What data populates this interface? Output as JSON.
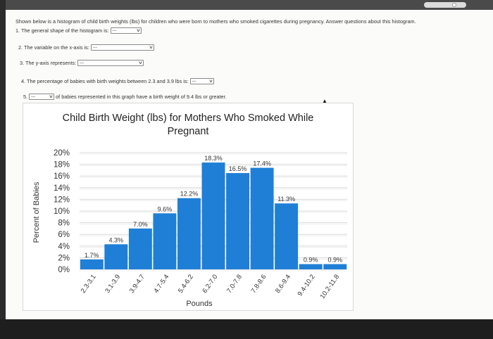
{
  "intro": "Shown below is a histogram of child birth weights (lbs) for children who were born to mothers who smoked cigarettes during pregnancy. Answer questions about this histogram.",
  "questions": [
    {
      "label": "1. The general shape of the histogram is:",
      "selected": "---"
    },
    {
      "label": "2. The variable on the x-axis is:",
      "selected": "---"
    },
    {
      "label": "3. The y-axis represents:",
      "selected": "---"
    },
    {
      "label": "4. The percentage of babies with birth weights between 2.3 and 3.9 lbs is:",
      "selected": "---"
    },
    {
      "label": "5.",
      "selected": "---",
      "suffix": "of babies represented in this graph have a birth weight of 9.4 lbs or greater."
    }
  ],
  "chart_data": {
    "type": "bar",
    "title_line1": "Child Birth Weight (lbs) for Mothers Who Smoked While",
    "title_line2": "Pregnant",
    "xlabel": "Pounds",
    "ylabel": "Percent of Babies",
    "categories": [
      "2.3-3.1",
      "3.1-3.9",
      "3.9-4.7",
      "4.7-5.4",
      "5.4-6.2",
      "6.2-7.0",
      "7.0-7.8",
      "7.8-8.6",
      "8.6-9.4",
      "9.4-10.2",
      "10.2-11.8"
    ],
    "values": [
      1.7,
      4.3,
      7.0,
      9.6,
      12.2,
      18.3,
      16.5,
      17.4,
      11.3,
      0.9,
      0.9
    ],
    "value_labels": [
      "1.7%",
      "4.3%",
      "7.0%",
      "9.6%",
      "12.2%",
      "18.3%",
      "16.5%",
      "17.4%",
      "11.3%",
      "0.9%",
      "0.9%"
    ],
    "yticks": [
      "0%",
      "2%",
      "4%",
      "6%",
      "8%",
      "10%",
      "12%",
      "14%",
      "16%",
      "18%",
      "20%"
    ],
    "ylim": [
      0,
      20
    ],
    "grid": true,
    "bar_color": "#1f7fd6"
  }
}
